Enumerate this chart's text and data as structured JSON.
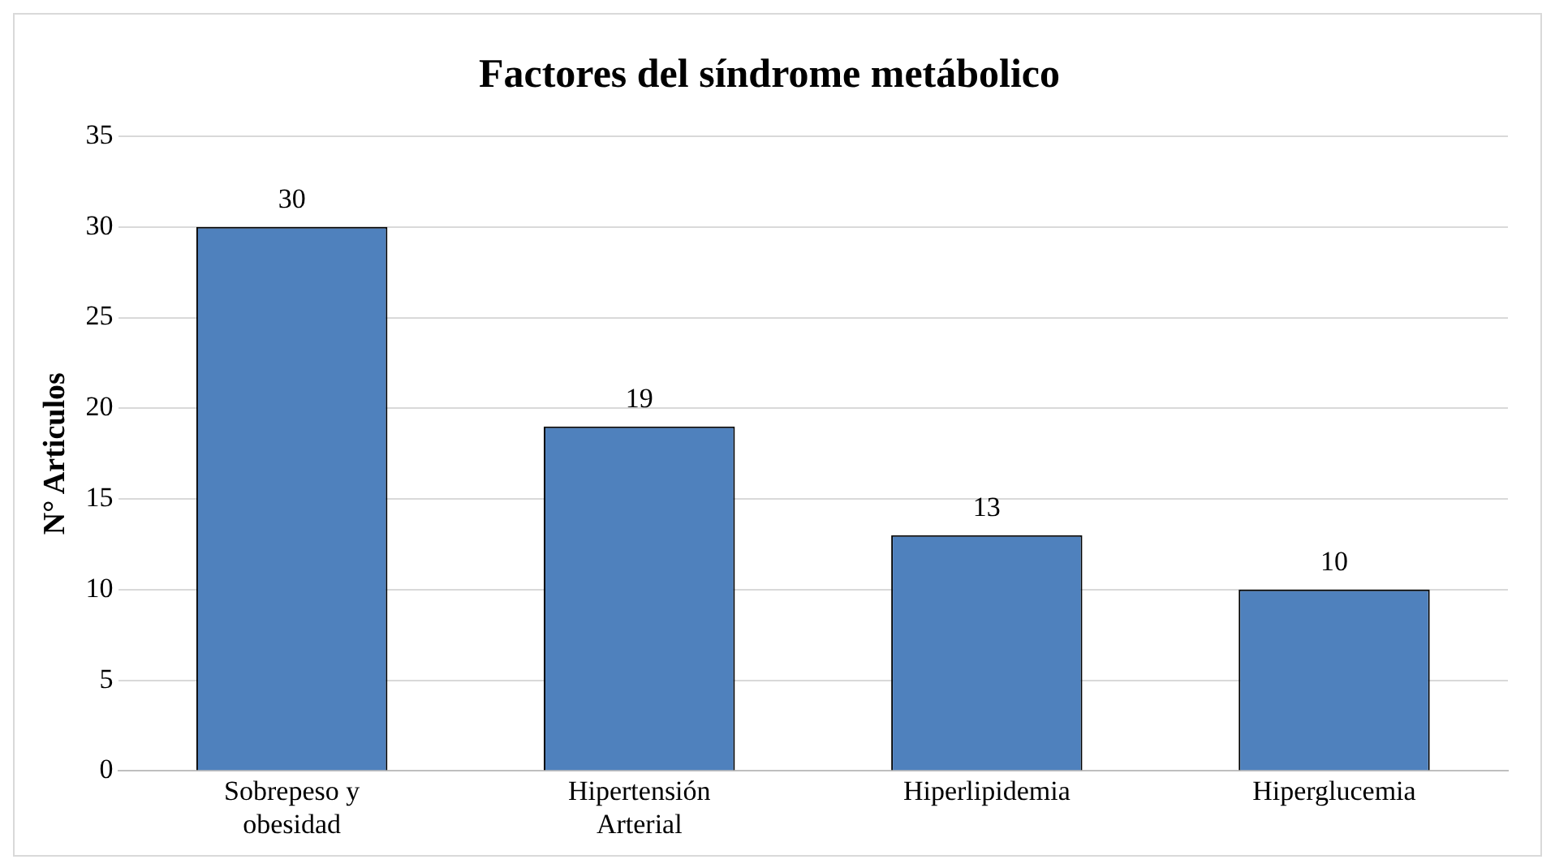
{
  "chart_data": {
    "type": "bar",
    "title": "Factores del síndrome metábolico",
    "ylabel": "N° Articulos",
    "categories": [
      "Sobrepeso y obesidad",
      "Hipertensión Arterial",
      "Hiperlipidemia",
      "Hiperglucemia"
    ],
    "values": [
      30,
      19,
      13,
      10
    ],
    "color": "#4f81bd",
    "ylim": [
      0,
      35
    ],
    "yticks": [
      0,
      5,
      10,
      15,
      20,
      25,
      30,
      35
    ],
    "grid": "y",
    "data_labels": true,
    "legend": false
  }
}
